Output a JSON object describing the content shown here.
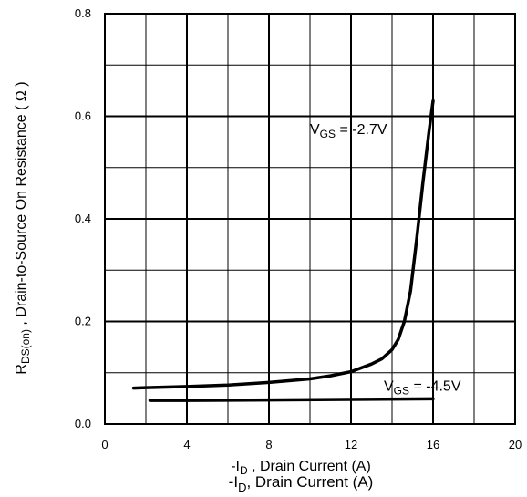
{
  "chart_data": {
    "type": "line",
    "title": "",
    "xlabel": "-I_D , Drain Current  (A)",
    "xlabel_repeat": "-I_D, Drain Current (A)",
    "ylabel": "R_DS(on) ,   Drain-to-Source On Resistance ( Ω )",
    "xlim": [
      0,
      20
    ],
    "ylim": [
      0,
      0.8
    ],
    "xticks": [
      "0",
      "4",
      "8",
      "12",
      "16",
      "20"
    ],
    "yticks": [
      "0.0",
      "0.2",
      "0.4",
      "0.6",
      "0.8"
    ],
    "grid": true,
    "series": [
      {
        "name": "",
        "x": [
          1.4,
          2,
          4,
          6,
          8,
          10,
          11,
          12,
          13,
          13.5,
          14,
          14.3,
          14.6,
          14.9,
          15.2,
          15.5,
          15.8,
          16.0
        ],
        "y": [
          0.07,
          0.071,
          0.073,
          0.076,
          0.081,
          0.088,
          0.094,
          0.102,
          0.117,
          0.127,
          0.145,
          0.165,
          0.2,
          0.26,
          0.36,
          0.47,
          0.57,
          0.63
        ]
      },
      {
        "name": "",
        "x": [
          2.2,
          4,
          8,
          12,
          16
        ],
        "y": [
          0.046,
          0.046,
          0.047,
          0.048,
          0.049
        ]
      }
    ],
    "annotations": [
      {
        "prefix": "V",
        "sub": "GS",
        "suffix": " = -2.7V",
        "x": 10.0,
        "y": 0.565
      },
      {
        "prefix": "V",
        "sub": "GS",
        "suffix": " = -4.5V",
        "x": 13.6,
        "y": 0.065
      }
    ]
  }
}
